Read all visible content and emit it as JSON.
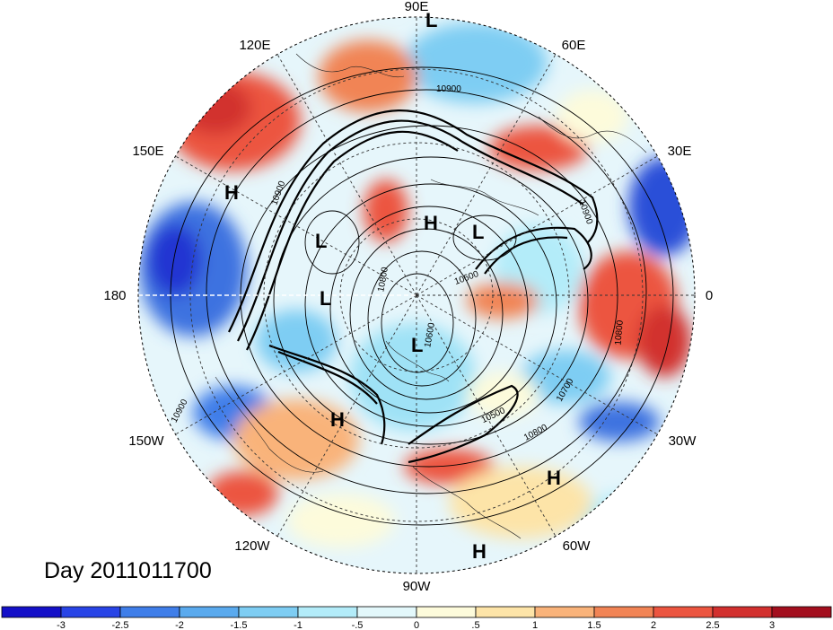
{
  "title": "Day 2011011700",
  "map": {
    "projection": "north-polar-stereographic",
    "longitude_labels": [
      "90E",
      "60E",
      "30E",
      "0",
      "30W",
      "60W",
      "90W",
      "120W",
      "150W",
      "180",
      "150E",
      "120E"
    ],
    "contour_labels": [
      "10900",
      "10900",
      "10900",
      "10800",
      "10700",
      "10600",
      "10500",
      "10800",
      "10900",
      "10800",
      "10600"
    ],
    "pressure_systems": [
      {
        "type": "L",
        "label": "L"
      },
      {
        "type": "H",
        "label": "H"
      },
      {
        "type": "L",
        "label": "L"
      },
      {
        "type": "L",
        "label": "L"
      },
      {
        "type": "L",
        "label": "L"
      },
      {
        "type": "H",
        "label": "H"
      },
      {
        "type": "L",
        "label": "L"
      },
      {
        "type": "H",
        "label": "H"
      },
      {
        "type": "H",
        "label": "H"
      },
      {
        "type": "H",
        "label": "H"
      }
    ]
  },
  "colorbar": {
    "colors": [
      "#1410c8",
      "#2844e6",
      "#3f7ee9",
      "#5aaaee",
      "#7ecdf3",
      "#b3ecf9",
      "#e3f8fb",
      "#fdfbdb",
      "#fde4a8",
      "#f9b37a",
      "#f18455",
      "#ec5540",
      "#d2302e",
      "#a30f1e"
    ],
    "tick_labels": [
      "-3",
      "-2.5",
      "-2",
      "-1.5",
      "-1",
      "-.5",
      "0",
      ".5",
      "1",
      "1.5",
      "2",
      "2.5",
      "3"
    ]
  }
}
